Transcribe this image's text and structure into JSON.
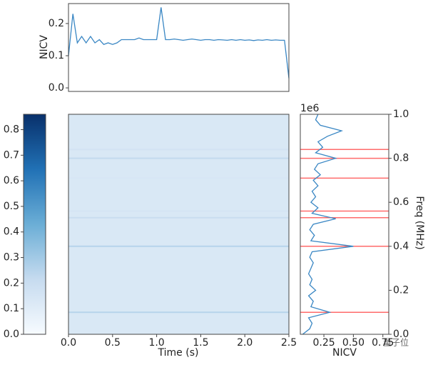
{
  "chart_data": [
    {
      "type": "line",
      "ylabel": "NICV",
      "color": "#3a87c4",
      "x": [
        0,
        0.05,
        0.1,
        0.15,
        0.2,
        0.25,
        0.3,
        0.35,
        0.4,
        0.45,
        0.5,
        0.55,
        0.6,
        0.65,
        0.7,
        0.75,
        0.8,
        0.85,
        0.9,
        0.95,
        1.0,
        1.05,
        1.1,
        1.15,
        1.2,
        1.25,
        1.3,
        1.35,
        1.4,
        1.45,
        1.5,
        1.55,
        1.6,
        1.65,
        1.7,
        1.75,
        1.8,
        1.85,
        1.9,
        1.95,
        2.0,
        2.05,
        2.1,
        2.15,
        2.2,
        2.25,
        2.3,
        2.35,
        2.4,
        2.45,
        2.5
      ],
      "values": [
        0.1,
        0.23,
        0.14,
        0.16,
        0.14,
        0.16,
        0.14,
        0.15,
        0.135,
        0.14,
        0.135,
        0.14,
        0.15,
        0.15,
        0.15,
        0.15,
        0.155,
        0.15,
        0.15,
        0.15,
        0.15,
        0.25,
        0.15,
        0.15,
        0.152,
        0.15,
        0.148,
        0.15,
        0.152,
        0.15,
        0.148,
        0.15,
        0.15,
        0.148,
        0.15,
        0.149,
        0.148,
        0.15,
        0.148,
        0.15,
        0.148,
        0.149,
        0.147,
        0.149,
        0.148,
        0.15,
        0.148,
        0.149,
        0.148,
        0.148,
        0.03
      ],
      "xlim": [
        0,
        2.5
      ],
      "ylim": [
        -0.011,
        0.262
      ],
      "yticks": [
        {
          "value": 0,
          "label": "0.0"
        },
        0.1,
        0.2
      ]
    },
    {
      "type": "colorbar",
      "colormap": [
        "#f7fbff",
        "#c6dbef",
        "#6baed6",
        "#2171b5",
        "#08306b"
      ],
      "ylim": [
        0,
        0.86
      ],
      "yticks": [
        {
          "value": 0,
          "label": "0.0"
        },
        0.1,
        0.2,
        0.3,
        0.4,
        0.5,
        0.6,
        0.7,
        0.8
      ]
    },
    {
      "type": "heatmap",
      "xlabel": "Time (s)",
      "background": 0.13,
      "freq": [
        0.1,
        0.4,
        0.53,
        0.56,
        0.71,
        0.8,
        0.84
      ],
      "values": [
        0.25,
        0.25,
        0.2,
        0.15,
        0.14,
        0.22,
        0.16
      ],
      "xlim": [
        0,
        2.5
      ],
      "ylim": [
        0,
        1
      ],
      "xticks": [
        {
          "value": 0,
          "label": "0.0"
        },
        0.5,
        {
          "value": 1,
          "label": "1.0"
        },
        1.5,
        {
          "value": 2,
          "label": "2.0"
        },
        2.5
      ]
    },
    {
      "type": "profile",
      "xlabel": "NICV",
      "ylabel": "Freq (MHz)",
      "offset_label": "1e6",
      "color": "#3a87c4",
      "highlight_color": "#ff6b6b",
      "freq": [
        0,
        0.025,
        0.05,
        0.075,
        0.1,
        0.125,
        0.15,
        0.175,
        0.2,
        0.225,
        0.25,
        0.275,
        0.3,
        0.325,
        0.35,
        0.375,
        0.4,
        0.425,
        0.45,
        0.475,
        0.5,
        0.525,
        0.55,
        0.575,
        0.6,
        0.625,
        0.65,
        0.675,
        0.7,
        0.725,
        0.75,
        0.775,
        0.8,
        0.825,
        0.85,
        0.875,
        0.9,
        0.925,
        0.95,
        0.975,
        1.0
      ],
      "values": [
        0.07,
        0.13,
        0.15,
        0.12,
        0.3,
        0.14,
        0.16,
        0.12,
        0.18,
        0.13,
        0.15,
        0.12,
        0.14,
        0.16,
        0.13,
        0.15,
        0.5,
        0.14,
        0.17,
        0.13,
        0.16,
        0.35,
        0.15,
        0.2,
        0.14,
        0.18,
        0.15,
        0.2,
        0.16,
        0.22,
        0.17,
        0.2,
        0.35,
        0.18,
        0.24,
        0.2,
        0.28,
        0.4,
        0.22,
        0.18,
        0.2
      ],
      "highlights": [
        0.1,
        0.4,
        0.53,
        0.56,
        0.71,
        0.8,
        0.84
      ],
      "xlim": [
        0.05,
        0.8
      ],
      "ylim": [
        0,
        1
      ],
      "xticks": [
        0.25,
        {
          "value": 0.5,
          "label": "0.50"
        },
        0.75
      ],
      "yticks": [
        {
          "value": 0,
          "label": "0.0"
        },
        0.2,
        0.4,
        0.6,
        0.8,
        {
          "value": 1,
          "label": "1.0"
        }
      ]
    }
  ],
  "watermark": "量子位"
}
